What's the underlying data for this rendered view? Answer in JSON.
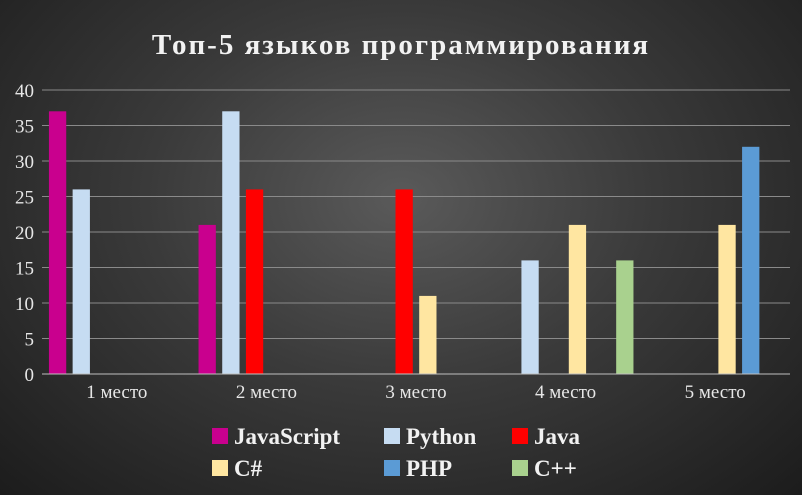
{
  "chart_data": {
    "type": "bar",
    "title": "Топ-5 языков программирования",
    "categories": [
      "1 место",
      "2 место",
      "3 место",
      "4 место",
      "5 место"
    ],
    "ylim": [
      0,
      40
    ],
    "yticks": [
      0,
      5,
      10,
      15,
      20,
      25,
      30,
      35,
      40
    ],
    "grid": true,
    "legend": "bottom",
    "series": [
      {
        "name": "JavaScript",
        "color": "#c9008e",
        "values": [
          37,
          21,
          0,
          0,
          0
        ]
      },
      {
        "name": "Python",
        "color": "#c6dcf2",
        "values": [
          26,
          37,
          0,
          16,
          0
        ]
      },
      {
        "name": "Java",
        "color": "#ff0000",
        "values": [
          0,
          26,
          26,
          0,
          0
        ]
      },
      {
        "name": "C#",
        "color": "#ffe6a1",
        "values": [
          0,
          0,
          11,
          21,
          21
        ]
      },
      {
        "name": "PHP",
        "color": "#5b9bd5",
        "values": [
          0,
          0,
          0,
          0,
          32
        ]
      },
      {
        "name": "C++",
        "color": "#a9d18e",
        "values": [
          0,
          0,
          0,
          16,
          0
        ]
      }
    ]
  }
}
